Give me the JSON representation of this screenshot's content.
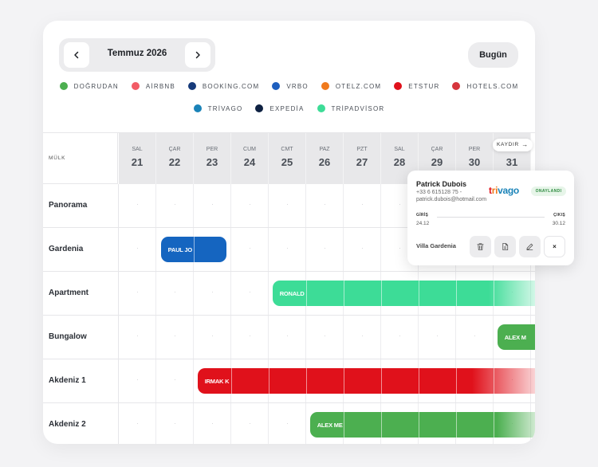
{
  "header": {
    "month_label": "Temmuz 2026",
    "prev_icon": "chevron-left-icon",
    "next_icon": "chevron-right-icon",
    "today_label": "Bugün"
  },
  "legend": {
    "row1": [
      {
        "label": "DOĞRUDAN",
        "color": "#4caf50"
      },
      {
        "label": "AİRBNB",
        "color": "#f25c66"
      },
      {
        "label": "BOOKİNG.COM",
        "color": "#163a7a"
      },
      {
        "label": "VRBO",
        "color": "#1e5fbf"
      },
      {
        "label": "OTELZ.COM",
        "color": "#f07a1d"
      },
      {
        "label": "ETSTUR",
        "color": "#e0111b"
      },
      {
        "label": "HOTELS.COM",
        "color": "#d6353c"
      }
    ],
    "row2": [
      {
        "label": "TRİVAGO",
        "color": "#1a83b8"
      },
      {
        "label": "EXPEDİA",
        "color": "#0e2142"
      },
      {
        "label": "TRİPADVİSOR",
        "color": "#3ddc97"
      }
    ]
  },
  "grid": {
    "corner_label": "MÜLK",
    "scroll_label": "KAYDIR",
    "scroll_icon": "arrow-right-icon",
    "days": [
      {
        "dow": "SAL",
        "num": "21"
      },
      {
        "dow": "ÇAR",
        "num": "22"
      },
      {
        "dow": "PER",
        "num": "23"
      },
      {
        "dow": "CUM",
        "num": "24"
      },
      {
        "dow": "CMT",
        "num": "25"
      },
      {
        "dow": "PAZ",
        "num": "26"
      },
      {
        "dow": "PZT",
        "num": "27"
      },
      {
        "dow": "SAL",
        "num": "28"
      },
      {
        "dow": "ÇAR",
        "num": "29"
      },
      {
        "dow": "PER",
        "num": "30"
      },
      {
        "dow": "CUM",
        "num": "31"
      }
    ],
    "properties": [
      "Panorama",
      "Gardenia",
      "Apartment",
      "Bungalow",
      "Akdeniz 1",
      "Akdeniz 2"
    ]
  },
  "bookings": {
    "gardenia": {
      "guest": "PAUL JO",
      "color": "#1565c0"
    },
    "apartment": {
      "guest": "RONALD",
      "color": "#3ddc97"
    },
    "bungalow": {
      "guest": "ALEX M",
      "color": "#4caf50"
    },
    "akdeniz1": {
      "guest": "IRMAK K",
      "color": "#e0111b"
    },
    "akdeniz2": {
      "guest": "ALEX ME",
      "color": "#4caf50"
    }
  },
  "popup": {
    "guest_name": "Patrick Dubois",
    "phone": "+33 6 615128 75 -",
    "email": "patrick.dubois@hotmail.com",
    "brand": "trivago",
    "status": "ONAYLANDI",
    "checkin_label": "GİRİŞ",
    "checkin_date": "24.12",
    "checkout_label": "ÇIKIŞ",
    "checkout_date": "30.12",
    "property": "Villa Gardenia",
    "actions": [
      "trash-icon",
      "document-icon",
      "edit-icon",
      "close-icon"
    ],
    "close_glyph": "×"
  }
}
